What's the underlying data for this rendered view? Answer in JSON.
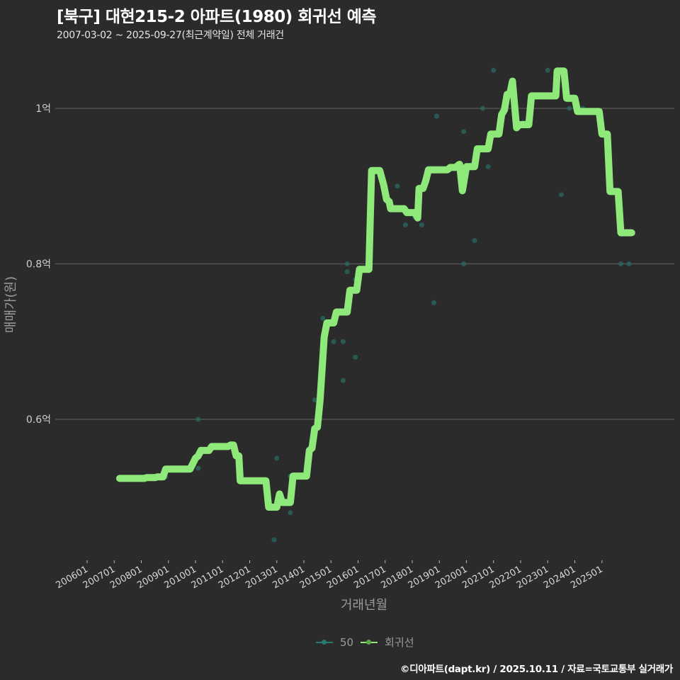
{
  "header": {
    "title": "[북구] 대현215-2 아파트(1980) 회귀선 예측",
    "subtitle": "2007-03-02 ~ 2025-09-27(최근계약일) 전체 거래건"
  },
  "legend": {
    "items": [
      {
        "label": "50",
        "color": "#2a7a72"
      },
      {
        "label": "회귀선",
        "color": "#8ee87a"
      }
    ]
  },
  "caption": "©디아파트(dapt.kr) / 2025.10.11 / 자료=국토교통부 실거래가",
  "colors": {
    "background": "#2b2b2b",
    "grid": "#5a5a5a",
    "regression_line": "#8ee87a",
    "scatter_points": "#2a6a62"
  },
  "chart_data": {
    "type": "line",
    "title": "[북구] 대현215-2 아파트(1980) 회귀선 예측",
    "subtitle": "2007-03-02 ~ 2025-09-27(최근계약일) 전체 거래건",
    "xlabel": "거래년월",
    "ylabel": "매매가(원)",
    "x_tick_labels": [
      "200601",
      "200701",
      "200801",
      "200901",
      "201001",
      "201101",
      "201201",
      "201301",
      "201401",
      "201501",
      "201601",
      "201701",
      "201801",
      "201901",
      "202001",
      "202101",
      "202201",
      "202301",
      "202401",
      "202501"
    ],
    "y_ticks": [
      {
        "value": 0.6,
        "label": "0.6억"
      },
      {
        "value": 0.8,
        "label": "0.8억"
      },
      {
        "value": 1.0,
        "label": "1억"
      }
    ],
    "y_unit": "억원",
    "ylim": [
      0.43,
      1.08
    ],
    "grid": "horizontal",
    "legend_position": "bottom",
    "series": [
      {
        "name": "회귀선",
        "kind": "line",
        "points": [
          [
            2007.2,
            0.524
          ],
          [
            2008.1,
            0.524
          ],
          [
            2008.2,
            0.525
          ],
          [
            2008.5,
            0.525
          ],
          [
            2008.6,
            0.526
          ],
          [
            2008.8,
            0.526
          ],
          [
            2008.9,
            0.536
          ],
          [
            2009.8,
            0.536
          ],
          [
            2009.9,
            0.543
          ],
          [
            2010.0,
            0.55
          ],
          [
            2010.1,
            0.553
          ],
          [
            2010.2,
            0.56
          ],
          [
            2010.5,
            0.56
          ],
          [
            2010.6,
            0.565
          ],
          [
            2011.2,
            0.565
          ],
          [
            2011.3,
            0.567
          ],
          [
            2011.4,
            0.567
          ],
          [
            2011.5,
            0.553
          ],
          [
            2011.6,
            0.553
          ],
          [
            2011.65,
            0.521
          ],
          [
            2012.6,
            0.521
          ],
          [
            2012.7,
            0.487
          ],
          [
            2013.0,
            0.487
          ],
          [
            2013.1,
            0.504
          ],
          [
            2013.2,
            0.493
          ],
          [
            2013.5,
            0.493
          ],
          [
            2013.6,
            0.527
          ],
          [
            2014.1,
            0.527
          ],
          [
            2014.2,
            0.56
          ],
          [
            2014.3,
            0.563
          ],
          [
            2014.4,
            0.588
          ],
          [
            2014.5,
            0.59
          ],
          [
            2014.6,
            0.625
          ],
          [
            2014.75,
            0.706
          ],
          [
            2014.85,
            0.724
          ],
          [
            2015.1,
            0.724
          ],
          [
            2015.2,
            0.738
          ],
          [
            2015.6,
            0.738
          ],
          [
            2015.7,
            0.766
          ],
          [
            2015.95,
            0.766
          ],
          [
            2016.05,
            0.793
          ],
          [
            2016.4,
            0.793
          ],
          [
            2016.5,
            0.92
          ],
          [
            2016.8,
            0.92
          ],
          [
            2016.95,
            0.901
          ],
          [
            2017.05,
            0.883
          ],
          [
            2017.15,
            0.88
          ],
          [
            2017.2,
            0.871
          ],
          [
            2017.7,
            0.871
          ],
          [
            2017.8,
            0.866
          ],
          [
            2018.1,
            0.866
          ],
          [
            2018.2,
            0.859
          ],
          [
            2018.25,
            0.897
          ],
          [
            2018.4,
            0.897
          ],
          [
            2018.5,
            0.907
          ],
          [
            2018.6,
            0.921
          ],
          [
            2019.3,
            0.921
          ],
          [
            2019.4,
            0.924
          ],
          [
            2019.6,
            0.924
          ],
          [
            2019.7,
            0.927
          ],
          [
            2019.75,
            0.928
          ],
          [
            2019.85,
            0.894
          ],
          [
            2020.0,
            0.925
          ],
          [
            2020.3,
            0.925
          ],
          [
            2020.4,
            0.948
          ],
          [
            2020.8,
            0.948
          ],
          [
            2020.9,
            0.967
          ],
          [
            2021.2,
            0.967
          ],
          [
            2021.3,
            0.992
          ],
          [
            2021.4,
            0.998
          ],
          [
            2021.5,
            1.018
          ],
          [
            2021.6,
            1.018
          ],
          [
            2021.7,
            1.035
          ],
          [
            2021.85,
            0.975
          ],
          [
            2021.95,
            0.979
          ],
          [
            2022.3,
            0.979
          ],
          [
            2022.4,
            1.016
          ],
          [
            2022.9,
            1.016
          ],
          [
            2023.3,
            1.016
          ],
          [
            2023.35,
            1.048
          ],
          [
            2023.6,
            1.048
          ],
          [
            2023.7,
            1.013
          ],
          [
            2024.0,
            1.013
          ],
          [
            2024.1,
            0.996
          ],
          [
            2024.9,
            0.996
          ],
          [
            2025.0,
            0.967
          ],
          [
            2025.2,
            0.967
          ],
          [
            2025.3,
            0.893
          ],
          [
            2025.6,
            0.893
          ],
          [
            2025.7,
            0.84
          ],
          [
            2026.1,
            0.84
          ]
        ]
      },
      {
        "name": "50",
        "kind": "scatter",
        "points": [
          [
            2008.9,
            0.526
          ],
          [
            2010.1,
            0.6
          ],
          [
            2010.1,
            0.537
          ],
          [
            2012.9,
            0.445
          ],
          [
            2013.0,
            0.55
          ],
          [
            2013.5,
            0.48
          ],
          [
            2013.5,
            0.527
          ],
          [
            2014.4,
            0.625
          ],
          [
            2014.7,
            0.73
          ],
          [
            2015.1,
            0.7
          ],
          [
            2015.45,
            0.7
          ],
          [
            2015.45,
            0.65
          ],
          [
            2015.6,
            0.79
          ],
          [
            2015.6,
            0.8
          ],
          [
            2015.9,
            0.78
          ],
          [
            2015.9,
            0.68
          ],
          [
            2016.7,
            0.92
          ],
          [
            2017.45,
            0.9
          ],
          [
            2017.75,
            0.85
          ],
          [
            2018.1,
            0.86
          ],
          [
            2018.35,
            0.85
          ],
          [
            2018.8,
            0.75
          ],
          [
            2018.9,
            0.99
          ],
          [
            2019.9,
            0.97
          ],
          [
            2019.9,
            0.8
          ],
          [
            2020.3,
            0.83
          ],
          [
            2020.6,
            1.0
          ],
          [
            2020.8,
            0.925
          ],
          [
            2021.0,
            1.049
          ],
          [
            2022.1,
            0.982
          ],
          [
            2023.0,
            1.049
          ],
          [
            2023.5,
            0.889
          ],
          [
            2023.8,
            1.0
          ],
          [
            2024.3,
            1.0
          ],
          [
            2025.7,
            0.8
          ],
          [
            2026.0,
            0.8
          ]
        ]
      }
    ]
  }
}
